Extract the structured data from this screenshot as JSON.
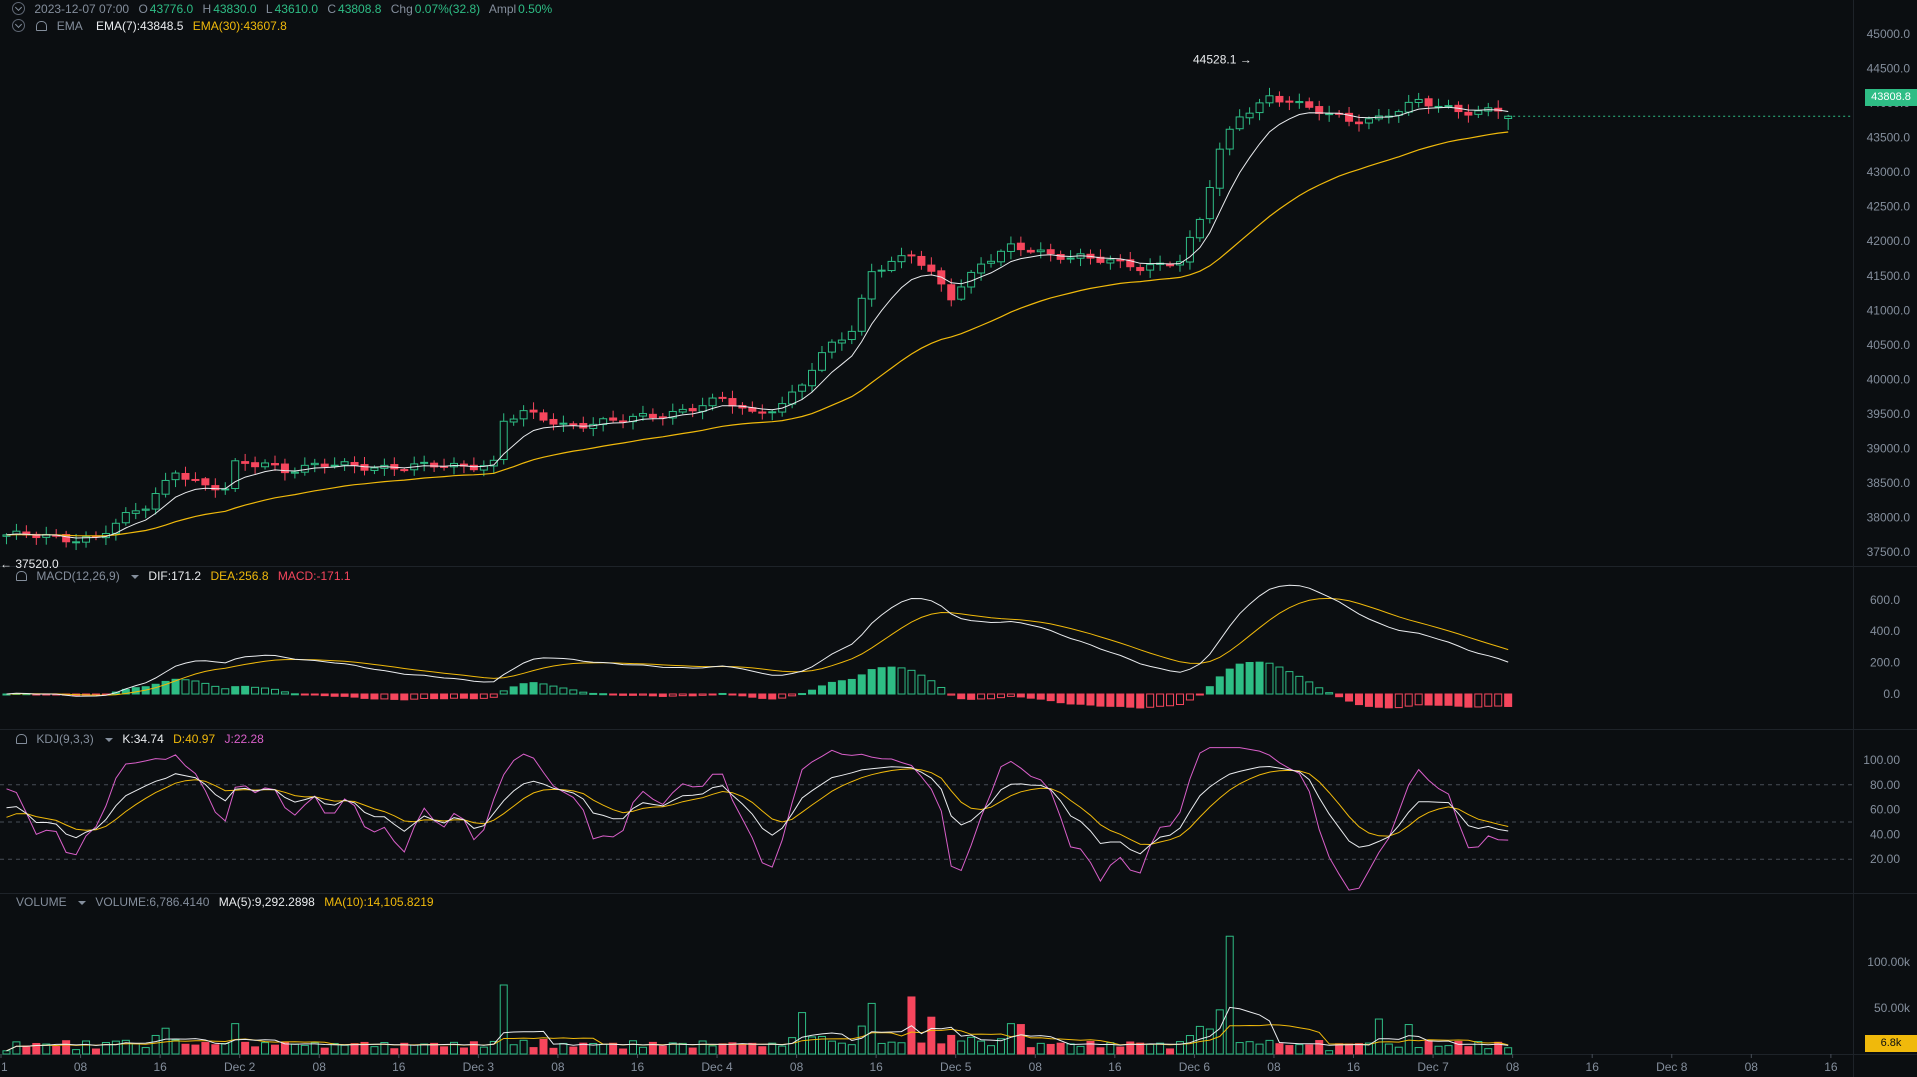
{
  "ohlc": {
    "date": "2023-12-07 07:00",
    "o_label": "O",
    "o": "43776.0",
    "h_label": "H",
    "h": "43830.0",
    "l_label": "L",
    "l": "43610.0",
    "c_label": "C",
    "c": "43808.8",
    "chg_label": "Chg",
    "chg": "0.07%(32.8)",
    "ampl_label": "Ampl",
    "ampl": "0.50%"
  },
  "ema": {
    "label": "EMA",
    "ema7": "EMA(7):43848.5",
    "ema30": "EMA(30):43607.8"
  },
  "macd": {
    "label": "MACD(12,26,9)",
    "dif": "DIF:171.2",
    "dea": "DEA:256.8",
    "macd": "MACD:-171.1"
  },
  "kdj": {
    "label": "KDJ(9,3,3)",
    "k": "K:34.74",
    "d": "D:40.97",
    "j": "J:22.28"
  },
  "volume": {
    "label": "VOLUME",
    "volume": "VOLUME:6,786.4140",
    "ma5": "MA(5):9,292.2898",
    "ma10": "MA(10):14,105.8219"
  },
  "price_axis": [
    "45000.0",
    "44500.0",
    "44000.0",
    "43500.0",
    "43000.0",
    "42500.0",
    "42000.0",
    "41500.0",
    "41000.0",
    "40500.0",
    "40000.0",
    "39500.0",
    "39000.0",
    "38500.0",
    "38000.0",
    "37500.0"
  ],
  "current_price": "43808.8",
  "high_marker": "44528.1 →",
  "low_marker": "← 37520.0",
  "macd_axis": [
    "600.0",
    "400.0",
    "200.0",
    "0.0"
  ],
  "kdj_axis": [
    "100.00",
    "80.00",
    "60.00",
    "40.00",
    "20.00"
  ],
  "volume_axis": [
    "100.00k",
    "50.00k"
  ],
  "current_volume": "6.8k",
  "time_axis": [
    "1",
    "08",
    "16",
    "Dec 2",
    "08",
    "16",
    "Dec 3",
    "08",
    "16",
    "Dec 4",
    "08",
    "16",
    "Dec 5",
    "08",
    "16",
    "Dec 6",
    "08",
    "16",
    "Dec 7",
    "08",
    "16",
    "Dec 8",
    "08",
    "16"
  ],
  "colors": {
    "up": "#2ebd85",
    "down": "#f6465d",
    "ema7": "#eaecef",
    "ema30": "#f0b90b",
    "j": "#d95fc9",
    "bg": "#0b0e11"
  },
  "chart_data": {
    "type": "candlestick",
    "interval": "1h",
    "x_range": [
      "2023-12-01 00:00",
      "2023-12-07 07:00"
    ],
    "ylim": [
      37300,
      45100
    ],
    "close_anchors": [
      [
        0,
        37750
      ],
      [
        6,
        37700
      ],
      [
        9,
        37720
      ],
      [
        12,
        38000
      ],
      [
        14,
        38150
      ],
      [
        17,
        38700
      ],
      [
        20,
        38450
      ],
      [
        22,
        38400
      ],
      [
        23,
        38750
      ],
      [
        26,
        38800
      ],
      [
        28,
        38700
      ],
      [
        32,
        38750
      ],
      [
        36,
        38750
      ],
      [
        40,
        38730
      ],
      [
        46,
        38750
      ],
      [
        49,
        38800
      ],
      [
        50,
        39400
      ],
      [
        52,
        39500
      ],
      [
        56,
        39350
      ],
      [
        62,
        39400
      ],
      [
        66,
        39500
      ],
      [
        69,
        39600
      ],
      [
        72,
        39700
      ],
      [
        75,
        39500
      ],
      [
        78,
        39650
      ],
      [
        80,
        39950
      ],
      [
        83,
        40500
      ],
      [
        85,
        40700
      ],
      [
        87,
        41600
      ],
      [
        91,
        41800
      ],
      [
        93,
        41500
      ],
      [
        95,
        41200
      ],
      [
        98,
        41700
      ],
      [
        101,
        41900
      ],
      [
        105,
        41800
      ],
      [
        108,
        41800
      ],
      [
        111,
        41700
      ],
      [
        112,
        41650
      ],
      [
        114,
        41600
      ],
      [
        118,
        41750
      ],
      [
        120,
        42300
      ],
      [
        121,
        42800
      ],
      [
        122,
        43300
      ],
      [
        124,
        43800
      ],
      [
        126,
        44000
      ],
      [
        127,
        44100
      ],
      [
        129,
        44050
      ],
      [
        131,
        43900
      ],
      [
        135,
        43750
      ],
      [
        138,
        43800
      ],
      [
        142,
        44000
      ],
      [
        146,
        43900
      ],
      [
        150,
        43900
      ],
      [
        151,
        43808.8
      ]
    ],
    "high": 44528.1,
    "low": 37520.0,
    "last": {
      "open": 43776.0,
      "high": 43830.0,
      "low": 43610.0,
      "close": 43808.8
    },
    "ema7_last": 43848.5,
    "ema30_last": 43607.8,
    "macd_last": {
      "dif": 171.2,
      "dea": 256.8,
      "hist": -171.1
    },
    "kdj_last": {
      "k": 34.74,
      "d": 40.97,
      "j": 22.28
    },
    "volume_last": 6786.414,
    "volume_ma5_last": 9292.2898,
    "volume_ma10_last": 14105.8219,
    "volume_spikes": [
      [
        16,
        28000
      ],
      [
        23,
        33000
      ],
      [
        50,
        75000
      ],
      [
        80,
        45000
      ],
      [
        87,
        55000
      ],
      [
        91,
        62000
      ],
      [
        93,
        40000
      ],
      [
        101,
        33000
      ],
      [
        102,
        32000
      ],
      [
        120,
        30000
      ],
      [
        122,
        48000
      ],
      [
        123,
        128000
      ],
      [
        138,
        38000
      ],
      [
        141,
        32000
      ]
    ],
    "volume_base": 7000
  }
}
